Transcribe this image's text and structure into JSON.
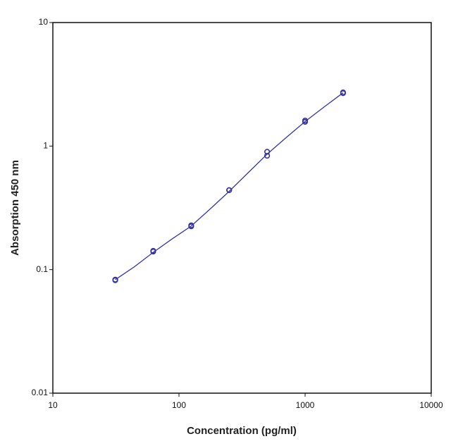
{
  "chart_data": {
    "type": "scatter",
    "x_label": "Concentration (pg/ml)",
    "y_label": "Absorption 450 nm",
    "xscale": "log",
    "yscale": "log",
    "xlim": [
      10,
      10000
    ],
    "ylim": [
      0.01,
      10
    ],
    "xticks": [
      10,
      100,
      1000,
      10000
    ],
    "yticks": [
      0.01,
      0.1,
      1,
      10
    ],
    "color": "#3434a8",
    "x": [
      31.25,
      31.25,
      62.5,
      62.5,
      125,
      125,
      250,
      250,
      500,
      500,
      1000,
      1000,
      2000,
      2000
    ],
    "values": [
      0.083,
      0.082,
      0.142,
      0.14,
      0.228,
      0.224,
      0.44,
      0.44,
      0.9,
      0.835,
      1.61,
      1.57,
      2.72,
      2.68
    ],
    "fit_x": [
      31.25,
      44,
      62.5,
      88,
      125,
      177,
      250,
      354,
      500,
      707,
      1000,
      1414,
      2000
    ],
    "fit_values": [
      0.083,
      0.105,
      0.138,
      0.177,
      0.225,
      0.31,
      0.43,
      0.61,
      0.86,
      1.17,
      1.58,
      2.07,
      2.7
    ]
  }
}
